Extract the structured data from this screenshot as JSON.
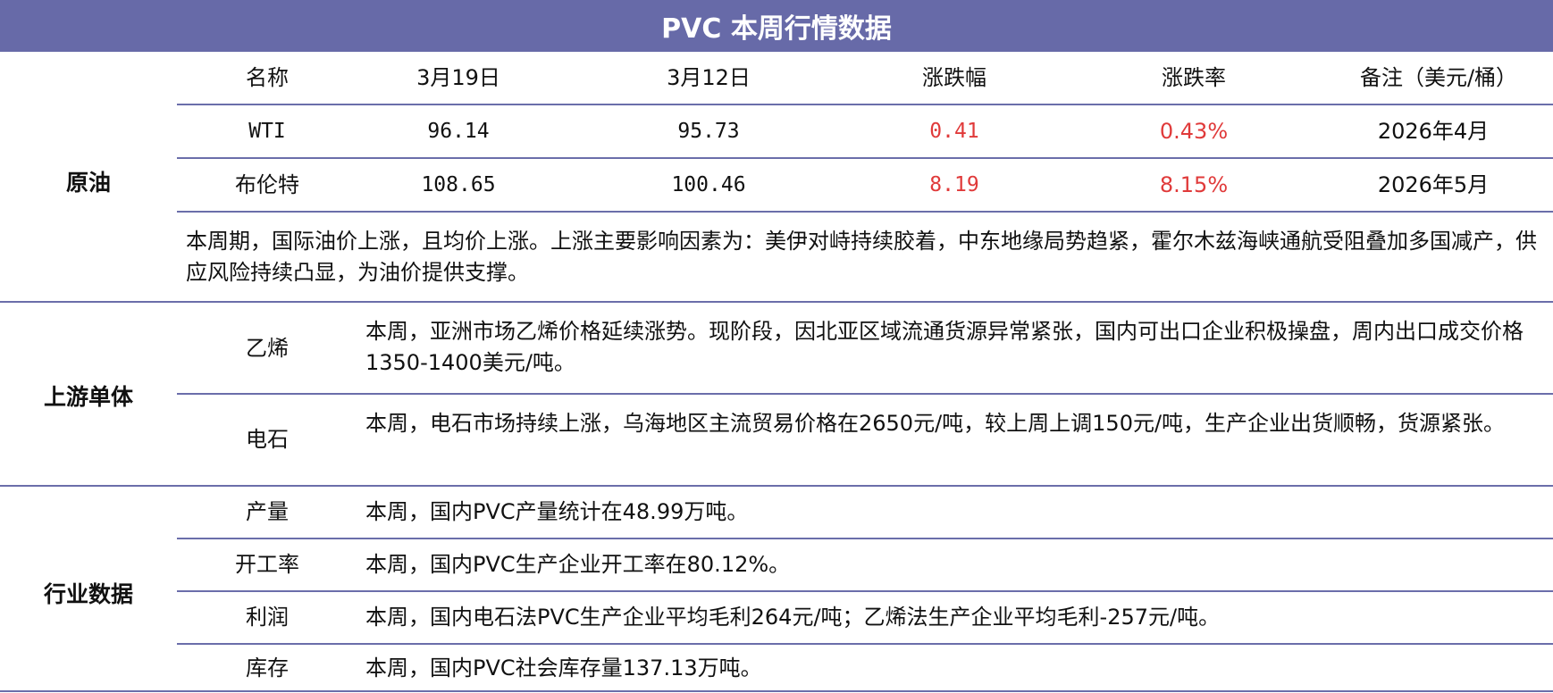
{
  "title": "PVC 本周行情数据",
  "crude": {
    "category": "原油",
    "headers": [
      "名称",
      "3月19日",
      "3月12日",
      "涨跌幅",
      "涨跌率",
      "备注（美元/桶）"
    ],
    "rows": [
      {
        "name": "WTI",
        "current": "96.14",
        "previous": "95.73",
        "change": "0.41",
        "rate": "0.43%",
        "note": "2026年4月"
      },
      {
        "name": "布伦特",
        "current": "108.65",
        "previous": "100.46",
        "change": "8.19",
        "rate": "8.15%",
        "note": "2026年5月"
      }
    ],
    "summary": "本周期，国际油价上涨，且均价上涨。上涨主要影响因素为：美伊对峙持续胶着，中东地缘局势趋紧，霍尔木兹海峡通航受阻叠加多国减产，供应风险持续凸显，为油价提供支撑。"
  },
  "upstream": {
    "category": "上游单体",
    "items": [
      {
        "name": "乙烯",
        "text": "本周，亚洲市场乙烯价格延续涨势。现阶段，因北亚区域流通货源异常紧张，国内可出口企业积极操盘，周内出口成交价格1350-1400美元/吨。"
      },
      {
        "name": "电石",
        "text": "本周，电石市场持续上涨，乌海地区主流贸易价格在2650元/吨，较上周上调150元/吨，生产企业出货顺畅，货源紧张。"
      }
    ]
  },
  "industry": {
    "category": "行业数据",
    "items": [
      {
        "name": "产量",
        "text": "本周，国内PVC产量统计在48.99万吨。"
      },
      {
        "name": "开工率",
        "text": "本周，国内PVC生产企业开工率在80.12%。"
      },
      {
        "name": "利润",
        "text": "本周，国内电石法PVC生产企业平均毛利264元/吨；乙烯法生产企业平均毛利-257元/吨。"
      },
      {
        "name": "库存",
        "text": "本周，国内PVC社会库存量137.13万吨。"
      }
    ]
  },
  "colors": {
    "header": "#676aa8",
    "rule": "#6b6eaa",
    "up": "#e03a3a"
  }
}
